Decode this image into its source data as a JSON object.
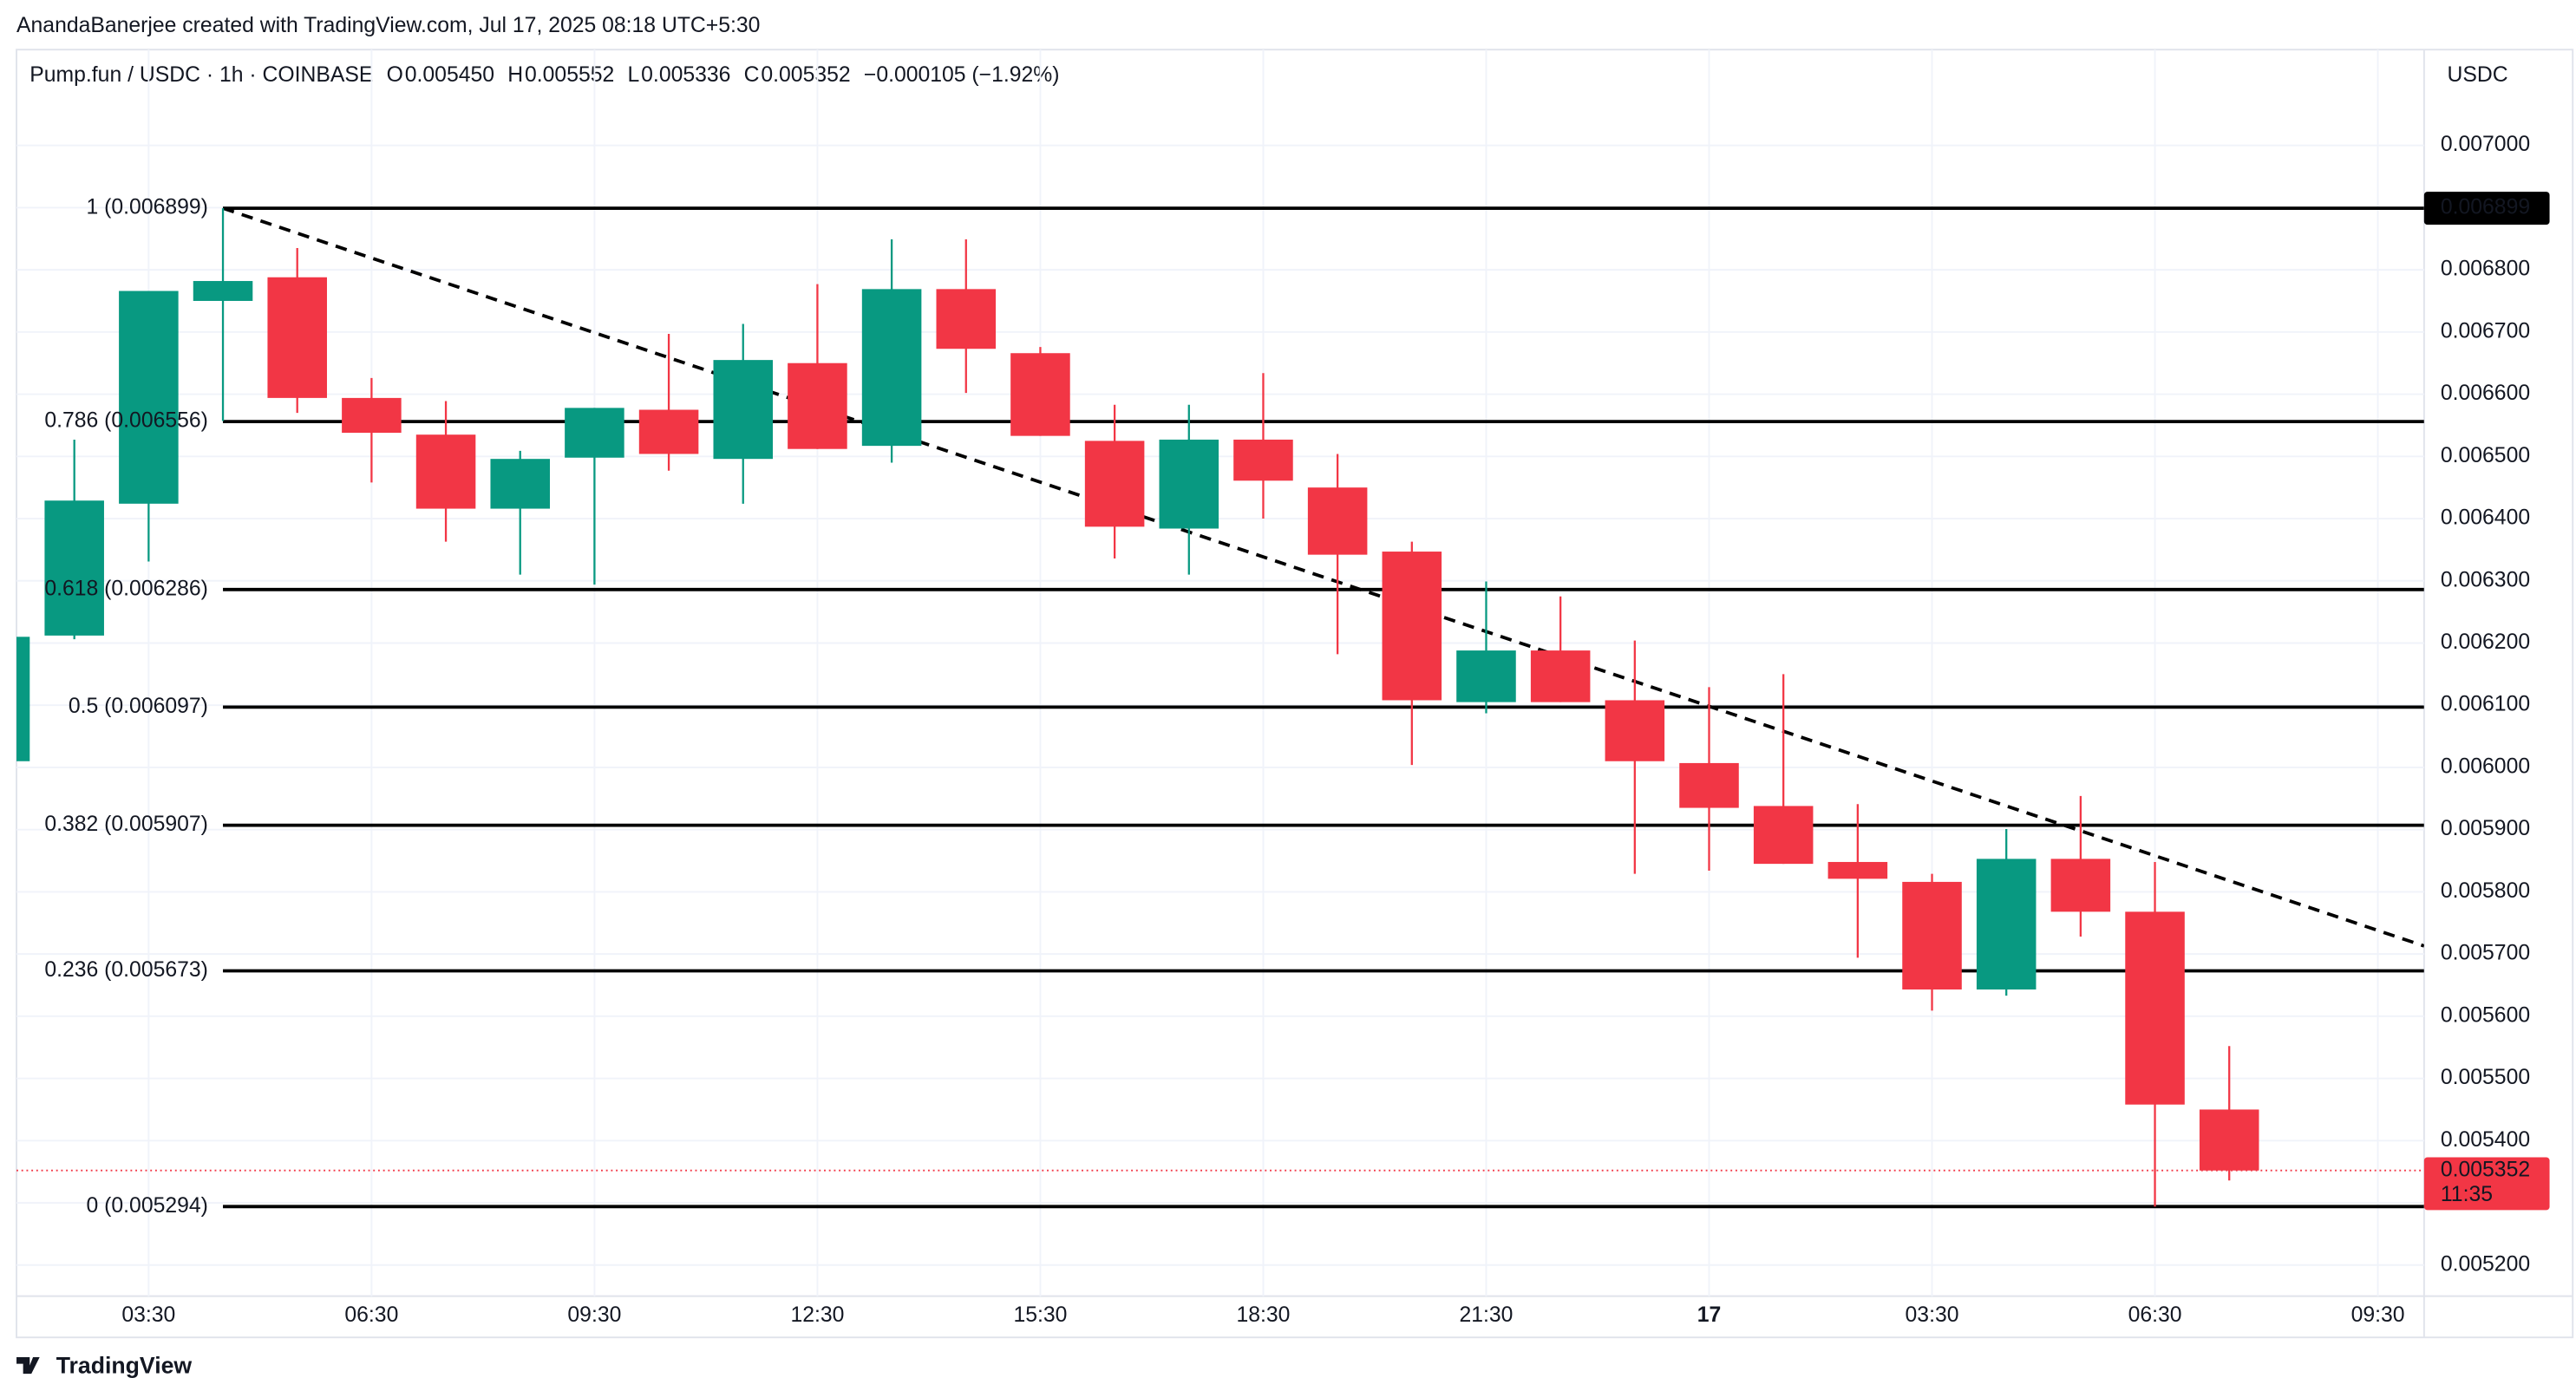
{
  "header": {
    "attribution": "AnandaBanerjee created with TradingView.com, Jul 17, 2025 08:18 UTC+5:30",
    "logo": "TradingView"
  },
  "chart_data": {
    "type": "candlestick",
    "legend": {
      "symbol": "Pump.fun / USDC · 1h · COINBASE",
      "open_label": "O",
      "open": "0.005450",
      "high_label": "H",
      "high": "0.005552",
      "low_label": "L",
      "low": "0.005336",
      "close_label": "C",
      "close": "0.005352",
      "change": "−0.000105 (−1.92%)"
    },
    "currency": "USDC",
    "up_color": "#089981",
    "down_color": "#f23645",
    "x": [
      1.5,
      2.5,
      3.5,
      4.5,
      5.5,
      6.5,
      7.5,
      8.5,
      9.5,
      10.5,
      11.5,
      12.5,
      13.5,
      14.5,
      15.5,
      16.5,
      17.5,
      18.5,
      19.5,
      20.5,
      21.5,
      22.5,
      23.5,
      24.5,
      25.5,
      26.5,
      27.5,
      28.5,
      29.5,
      30.5,
      31.5
    ],
    "open": [
      0.00601,
      0.006212,
      0.006424,
      0.00675,
      0.006788,
      0.006594,
      0.006535,
      0.006416,
      0.006498,
      0.006575,
      0.006496,
      0.00665,
      0.006517,
      0.006769,
      0.006666,
      0.006525,
      0.006384,
      0.006527,
      0.00645,
      0.006347,
      0.006105,
      0.006188,
      0.006108,
      0.006007,
      0.005938,
      0.005848,
      0.005816,
      0.005643,
      0.005853,
      0.005768,
      0.00545
    ],
    "high": [
      0.00622,
      0.006527,
      0.006766,
      0.006899,
      0.006835,
      0.006626,
      0.006589,
      0.006509,
      0.006578,
      0.006697,
      0.006713,
      0.006777,
      0.006849,
      0.006849,
      0.006676,
      0.006583,
      0.006583,
      0.006634,
      0.006504,
      0.006363,
      0.006299,
      0.006275,
      0.006204,
      0.006129,
      0.00615,
      0.005941,
      0.005829,
      0.005901,
      0.005954,
      0.005848,
      0.005552
    ],
    "low": [
      0.006,
      0.006206,
      0.006331,
      0.006557,
      0.00657,
      0.006458,
      0.006363,
      0.00631,
      0.006294,
      0.006477,
      0.006424,
      0.006512,
      0.00649,
      0.006602,
      0.006533,
      0.006336,
      0.00631,
      0.0064,
      0.006182,
      0.006004,
      0.006087,
      0.006105,
      0.005829,
      0.005834,
      0.005845,
      0.005694,
      0.005609,
      0.005633,
      0.005728,
      0.005294,
      0.005336
    ],
    "close": [
      0.00621,
      0.006429,
      0.006766,
      0.006782,
      0.006594,
      0.006538,
      0.006416,
      0.006496,
      0.006578,
      0.006504,
      0.006655,
      0.006512,
      0.006769,
      0.006673,
      0.006533,
      0.006387,
      0.006527,
      0.006461,
      0.006342,
      0.006108,
      0.006188,
      0.006105,
      0.00601,
      0.005935,
      0.005845,
      0.005821,
      0.005643,
      0.005853,
      0.005768,
      0.005458,
      0.005352
    ],
    "xlim": [
      1.722,
      34.122
    ],
    "xticks": [
      {
        "value": 3.5,
        "label": "03:30"
      },
      {
        "value": 6.5,
        "label": "06:30"
      },
      {
        "value": 9.5,
        "label": "09:30"
      },
      {
        "value": 12.5,
        "label": "12:30"
      },
      {
        "value": 15.5,
        "label": "15:30"
      },
      {
        "value": 18.5,
        "label": "18:30"
      },
      {
        "value": 21.5,
        "label": "21:30"
      },
      {
        "value": 24.5,
        "label": "17"
      },
      {
        "value": 27.5,
        "label": "03:30"
      },
      {
        "value": 30.5,
        "label": "06:30"
      },
      {
        "value": 33.5,
        "label": "09:30"
      }
    ],
    "ylim": [
      0.00515,
      0.007154
    ],
    "yticks": [
      {
        "value": 0.0052,
        "label": "0.005200"
      },
      {
        "value": 0.0053,
        "label": "0.005300"
      },
      {
        "value": 0.0054,
        "label": "0.005400"
      },
      {
        "value": 0.0055,
        "label": "0.005500"
      },
      {
        "value": 0.0056,
        "label": "0.005600"
      },
      {
        "value": 0.0057,
        "label": "0.005700"
      },
      {
        "value": 0.0058,
        "label": "0.005800"
      },
      {
        "value": 0.0059,
        "label": "0.005900"
      },
      {
        "value": 0.006,
        "label": "0.006000"
      },
      {
        "value": 0.0061,
        "label": "0.006100"
      },
      {
        "value": 0.0062,
        "label": "0.006200"
      },
      {
        "value": 0.0063,
        "label": "0.006300"
      },
      {
        "value": 0.0064,
        "label": "0.006400"
      },
      {
        "value": 0.0065,
        "label": "0.006500"
      },
      {
        "value": 0.0066,
        "label": "0.006600"
      },
      {
        "value": 0.0067,
        "label": "0.006700"
      },
      {
        "value": 0.0068,
        "label": "0.006800"
      },
      {
        "value": 0.0069,
        "label": "0.006900"
      },
      {
        "value": 0.007,
        "label": "0.007000"
      }
    ],
    "grid": true,
    "fib_start_x": 4.5,
    "fib_levels": [
      {
        "value": 0.006899,
        "label": "1 (0.006899)"
      },
      {
        "value": 0.006556,
        "label": "0.786 (0.006556)"
      },
      {
        "value": 0.006286,
        "label": "0.618 (0.006286)"
      },
      {
        "value": 0.006097,
        "label": "0.5 (0.006097)"
      },
      {
        "value": 0.005907,
        "label": "0.382 (0.005907)"
      },
      {
        "value": 0.005673,
        "label": "0.236 (0.005673)"
      },
      {
        "value": 0.005294,
        "label": "0 (0.005294)"
      }
    ],
    "fib_color": "#000000",
    "trendline": {
      "x": [
        4.5,
        34.122
      ],
      "y": [
        0.006899,
        0.005713
      ]
    },
    "high_marker": {
      "value": 0.006899,
      "label": "0.006899"
    },
    "last_price": {
      "value": 0.005352,
      "label": "0.005352",
      "countdown": "11:35"
    }
  }
}
